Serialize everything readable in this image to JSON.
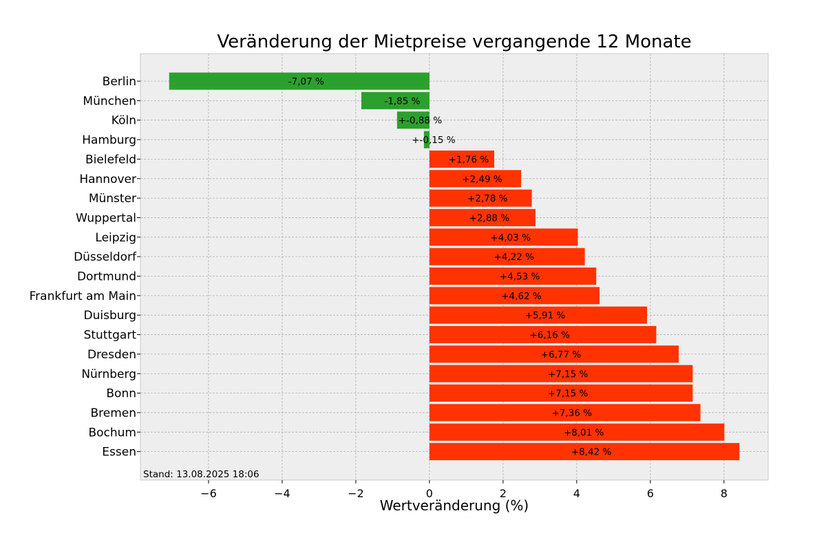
{
  "chart_data": {
    "type": "bar",
    "orientation": "horizontal",
    "title": "Veränderung der Mietpreise vergangende 12 Monate",
    "xlabel": "Wertveränderung (%)",
    "ylabel": "",
    "xlim": [
      -7.85,
      9.2
    ],
    "xticks": [
      -6,
      -4,
      -2,
      0,
      2,
      4,
      6,
      8
    ],
    "xtick_labels": [
      "−6",
      "−4",
      "−2",
      "0",
      "2",
      "4",
      "6",
      "8"
    ],
    "grid": true,
    "categories": [
      "Berlin",
      "München",
      "Köln",
      "Hamburg",
      "Bielefeld",
      "Hannover",
      "Münster",
      "Wuppertal",
      "Leipzig",
      "Düsseldorf",
      "Dortmund",
      "Frankfurt am Main",
      "Duisburg",
      "Stuttgart",
      "Dresden",
      "Nürnberg",
      "Bonn",
      "Bremen",
      "Bochum",
      "Essen"
    ],
    "values": [
      -7.07,
      -1.85,
      -0.88,
      -0.15,
      1.76,
      2.49,
      2.78,
      2.88,
      4.03,
      4.22,
      4.53,
      4.62,
      5.91,
      6.16,
      6.77,
      7.15,
      7.15,
      7.36,
      8.01,
      8.42
    ],
    "data_labels": [
      "-7,07 %",
      "-1,85 %",
      "+-0,88 %",
      "+-0,15 %",
      "+1,76 %",
      "+2,49 %",
      "+2,78 %",
      "+2,88 %",
      "+4,03 %",
      "+4,22 %",
      "+4,53 %",
      "+4,62 %",
      "+5,91 %",
      "+6,16 %",
      "+6,77 %",
      "+7,15 %",
      "+7,15 %",
      "+7,36 %",
      "+8,01 %",
      "+8,42 %"
    ],
    "annotation": "Stand: 13.08.2025 18:06",
    "colors": {
      "positive": "#ff3300",
      "negative": "#2ca02c",
      "plot_background": "#eeeeee",
      "grid": "#b0b0b0"
    }
  }
}
